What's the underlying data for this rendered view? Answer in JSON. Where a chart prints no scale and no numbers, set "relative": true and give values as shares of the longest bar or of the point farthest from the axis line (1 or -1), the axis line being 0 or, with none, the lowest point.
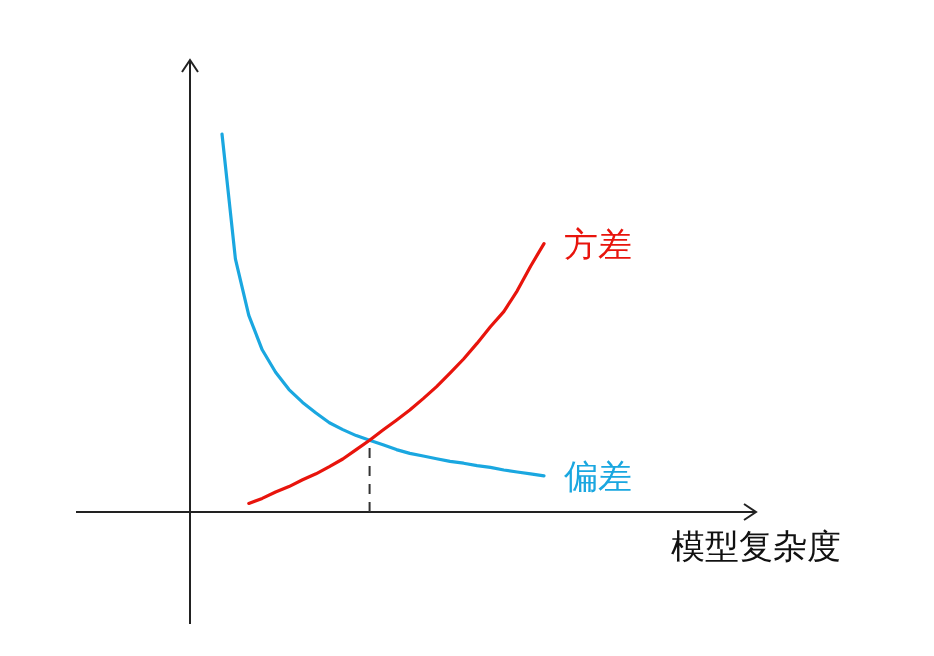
{
  "chart_data": {
    "type": "line",
    "xlabel": "模型复杂度",
    "relative": true,
    "categories": [
      null,
      null,
      null,
      null,
      null,
      null,
      null,
      null,
      null,
      null,
      null,
      null,
      null,
      null,
      null,
      null,
      null,
      null,
      null,
      null,
      null,
      null,
      null,
      null,
      null
    ],
    "series": [
      {
        "name": "偏差",
        "color": "#1aa7e0",
        "values": [
          1,
          0.67,
          0.52,
          0.429,
          0.37,
          0.324,
          0.29,
          0.262,
          0.236,
          0.218,
          0.202,
          0.19,
          0.178,
          0.165,
          0.155,
          0.148,
          0.141,
          0.134,
          0.129,
          0.123,
          0.118,
          0.111,
          0.106,
          0.101,
          0.096
        ]
      },
      {
        "name": "方差",
        "color": "#e8140c",
        "values": [
          null,
          null,
          0.023,
          0.036,
          0.053,
          0.067,
          0.085,
          0.101,
          0.12,
          0.14,
          0.165,
          0.19,
          0.217,
          0.243,
          0.27,
          0.3,
          0.332,
          0.367,
          0.405,
          0.446,
          0.49,
          0.53,
          0.585,
          0.65,
          0.71
        ]
      }
    ]
  }
}
